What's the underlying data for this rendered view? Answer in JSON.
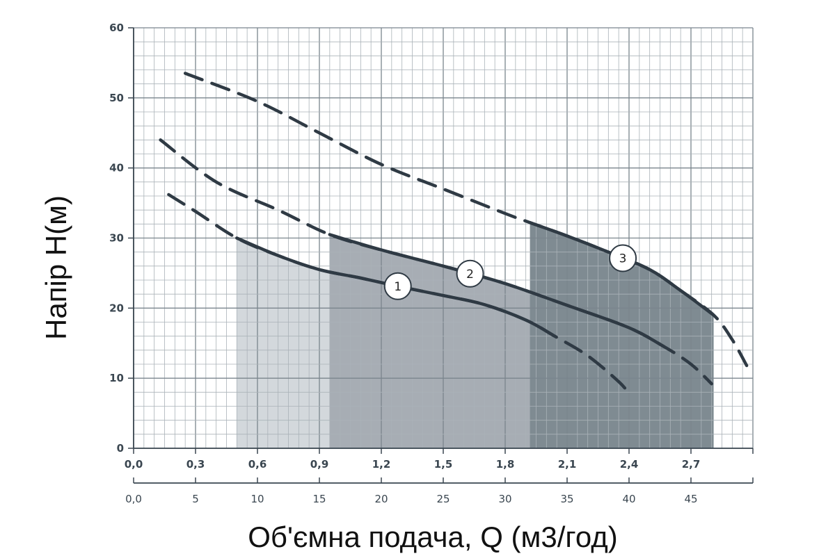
{
  "chart_data": {
    "type": "line",
    "ylabel": "Напір H(м)",
    "xlabel": "Об'ємна подача, Q (м3/год)",
    "ylim": [
      0,
      60
    ],
    "xlim": [
      0,
      3.0
    ],
    "y_ticks": [
      "0",
      "10",
      "20",
      "30",
      "40",
      "50",
      "60"
    ],
    "x_ticks_primary": [
      "0,0",
      "0,3",
      "0,6",
      "0,9",
      "1,2",
      "1,5",
      "1,8",
      "2,1",
      "2,4",
      "2,7"
    ],
    "x_ticks_secondary": [
      "0,0",
      "5",
      "10",
      "15",
      "20",
      "25",
      "30",
      "35",
      "40",
      "45"
    ],
    "grid": true,
    "series": [
      {
        "name": "1",
        "color": "#2f3a44",
        "fill_color": "#d3d8dc",
        "working_range": [
          0.5,
          2.04
        ],
        "points": [
          [
            0.17,
            36.2
          ],
          [
            0.3,
            33.8
          ],
          [
            0.5,
            30.0
          ],
          [
            0.7,
            27.5
          ],
          [
            0.9,
            25.5
          ],
          [
            1.1,
            24.3
          ],
          [
            1.3,
            23.0
          ],
          [
            1.5,
            21.8
          ],
          [
            1.7,
            20.5
          ],
          [
            1.9,
            18.3
          ],
          [
            2.04,
            16.0
          ],
          [
            2.2,
            13.2
          ],
          [
            2.35,
            9.5
          ],
          [
            2.4,
            7.8
          ]
        ]
      },
      {
        "name": "2",
        "color": "#2f3a44",
        "fill_color": "#a7adb4",
        "working_range": [
          0.95,
          2.57
        ],
        "points": [
          [
            0.13,
            44.0
          ],
          [
            0.4,
            38.0
          ],
          [
            0.7,
            34.0
          ],
          [
            0.95,
            30.5
          ],
          [
            1.2,
            28.3
          ],
          [
            1.5,
            26.0
          ],
          [
            1.8,
            23.5
          ],
          [
            2.1,
            20.4
          ],
          [
            2.4,
            17.2
          ],
          [
            2.57,
            14.5
          ],
          [
            2.7,
            12.0
          ],
          [
            2.8,
            9.2
          ]
        ]
      },
      {
        "name": "3",
        "color": "#2f3a44",
        "fill_color": "#7f8b92",
        "working_range": [
          1.92,
          2.81
        ],
        "points": [
          [
            0.25,
            53.5
          ],
          [
            0.6,
            49.5
          ],
          [
            0.9,
            45.0
          ],
          [
            1.2,
            40.5
          ],
          [
            1.5,
            37.0
          ],
          [
            1.8,
            33.5
          ],
          [
            1.92,
            32.2
          ],
          [
            2.1,
            30.3
          ],
          [
            2.3,
            28.0
          ],
          [
            2.5,
            25.5
          ],
          [
            2.65,
            22.5
          ],
          [
            2.81,
            19.0
          ],
          [
            2.9,
            15.5
          ],
          [
            2.97,
            11.8
          ]
        ]
      }
    ]
  }
}
